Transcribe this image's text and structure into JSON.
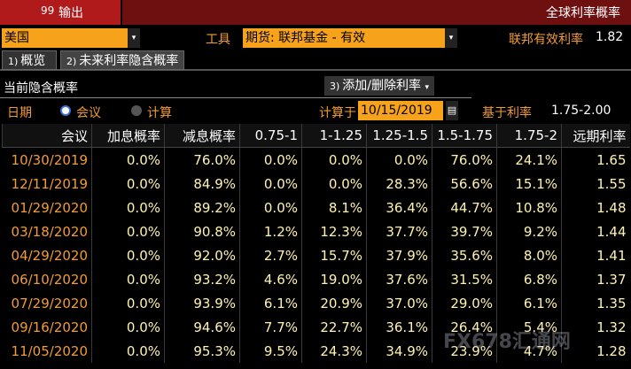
{
  "header": {
    "code": "99",
    "title": "输出",
    "right_title": "全球利率概率"
  },
  "controls": {
    "country": "美国",
    "instrument_label": "工具",
    "instrument": "期货: 联邦基金 - 有效",
    "rate_label": "联邦有效利率",
    "rate_value": "1.82"
  },
  "tabs": [
    {
      "num": "1)",
      "label": "概览"
    },
    {
      "num": "2)",
      "label": "未来利率隐含概率"
    }
  ],
  "section": {
    "title": "当前隐含概率",
    "button_num": "3)",
    "button": "添加/删除利率"
  },
  "options": {
    "date_label": "日期",
    "radio_meeting": "会议",
    "radio_calc": "计算",
    "calc_label": "计算于",
    "calc_date": "10/15/2019",
    "base_label": "基于利率",
    "base_value": "1.75-2.00"
  },
  "table": {
    "headers": [
      "会议",
      "加息概率",
      "减息概率",
      "0.75-1",
      "1-1.25",
      "1.25-1.5",
      "1.5-1.75",
      "1.75-2",
      "远期利率"
    ],
    "rows": [
      [
        "10/30/2019",
        "0.0%",
        "76.0%",
        "0.0%",
        "0.0%",
        "0.0%",
        "76.0%",
        "24.1%",
        "1.65"
      ],
      [
        "12/11/2019",
        "0.0%",
        "84.9%",
        "0.0%",
        "0.0%",
        "28.3%",
        "56.6%",
        "15.1%",
        "1.55"
      ],
      [
        "01/29/2020",
        "0.0%",
        "89.2%",
        "0.0%",
        "8.1%",
        "36.4%",
        "44.7%",
        "10.8%",
        "1.48"
      ],
      [
        "03/18/2020",
        "0.0%",
        "90.8%",
        "1.2%",
        "12.3%",
        "37.7%",
        "39.7%",
        "9.2%",
        "1.44"
      ],
      [
        "04/29/2020",
        "0.0%",
        "92.0%",
        "2.7%",
        "15.7%",
        "37.9%",
        "35.6%",
        "8.0%",
        "1.41"
      ],
      [
        "06/10/2020",
        "0.0%",
        "93.2%",
        "4.6%",
        "19.0%",
        "37.6%",
        "31.5%",
        "6.8%",
        "1.37"
      ],
      [
        "07/29/2020",
        "0.0%",
        "93.9%",
        "6.1%",
        "20.9%",
        "37.0%",
        "29.0%",
        "6.1%",
        "1.35"
      ],
      [
        "09/16/2020",
        "0.0%",
        "94.6%",
        "7.7%",
        "22.7%",
        "36.1%",
        "26.4%",
        "5.4%",
        "1.32"
      ],
      [
        "11/05/2020",
        "0.0%",
        "95.3%",
        "9.5%",
        "24.3%",
        "34.9%",
        "23.9%",
        "4.7%",
        "1.28"
      ]
    ]
  },
  "watermark": "FX678汇通网"
}
